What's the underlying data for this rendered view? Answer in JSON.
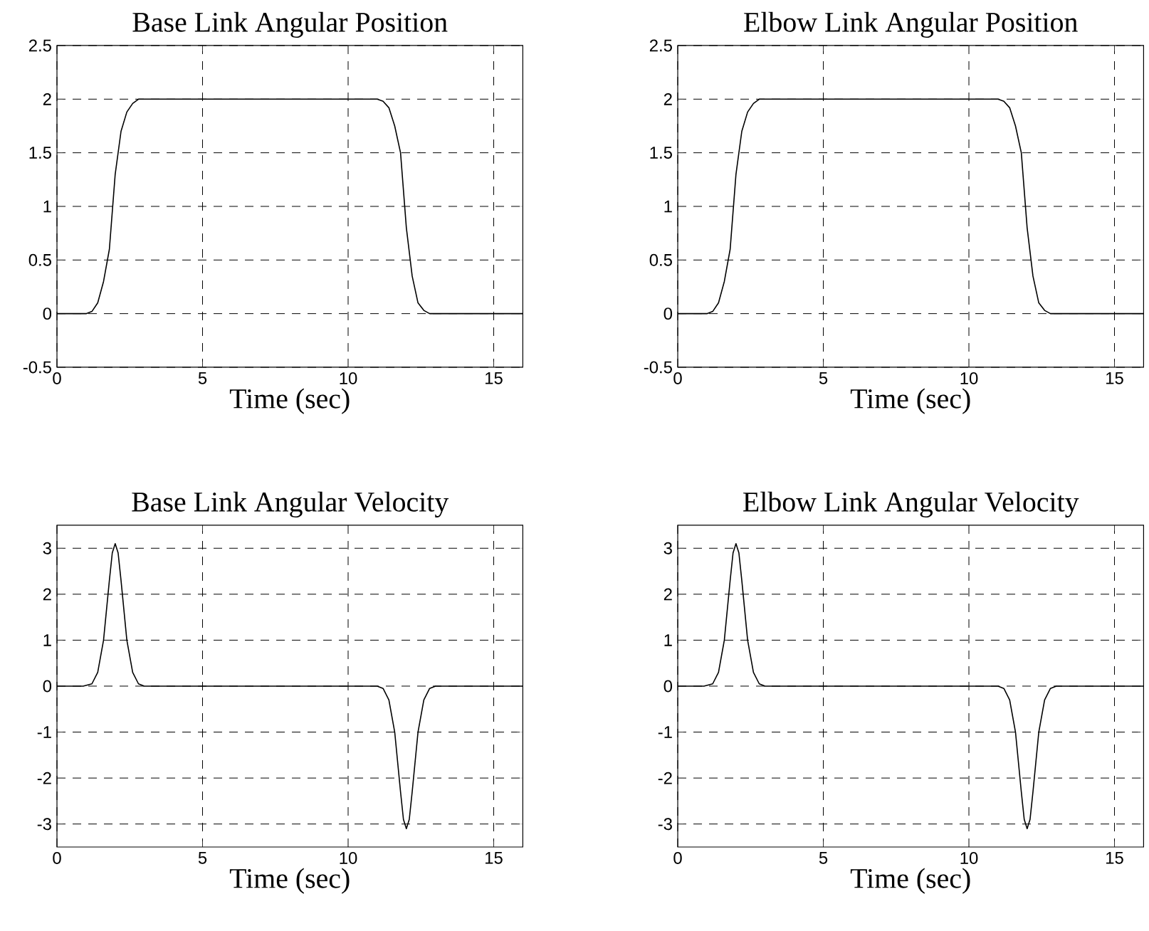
{
  "chart_data": [
    {
      "type": "line",
      "title": "Base Link Angular Position",
      "xlabel": "Time (sec)",
      "color": "#000000",
      "grid": true,
      "line_style": "solid",
      "xlim": [
        0,
        16
      ],
      "ylim": [
        -0.5,
        2.5
      ],
      "xticks": [
        0,
        5,
        10,
        15
      ],
      "yticks": [
        -0.5,
        0,
        0.5,
        1,
        1.5,
        2,
        2.5
      ],
      "x": [
        0,
        1,
        1.2,
        1.4,
        1.6,
        1.8,
        2.0,
        2.2,
        2.4,
        2.6,
        2.8,
        3,
        11,
        11.2,
        11.4,
        11.6,
        11.8,
        12,
        12.2,
        12.4,
        12.6,
        12.8,
        13,
        16
      ],
      "values": [
        0,
        0,
        0.02,
        0.1,
        0.3,
        0.6,
        1.3,
        1.7,
        1.88,
        1.96,
        2,
        2,
        2,
        1.98,
        1.92,
        1.75,
        1.5,
        0.8,
        0.35,
        0.1,
        0.03,
        0,
        0,
        0
      ]
    },
    {
      "type": "line",
      "title": "Elbow Link Angular Position",
      "xlabel": "Time (sec)",
      "color": "#000000",
      "grid": true,
      "line_style": "solid",
      "xlim": [
        0,
        16
      ],
      "ylim": [
        -0.5,
        2.5
      ],
      "xticks": [
        0,
        5,
        10,
        15
      ],
      "yticks": [
        -0.5,
        0,
        0.5,
        1,
        1.5,
        2,
        2.5
      ],
      "x": [
        0,
        1,
        1.2,
        1.4,
        1.6,
        1.8,
        2.0,
        2.2,
        2.4,
        2.6,
        2.8,
        3,
        11,
        11.2,
        11.4,
        11.6,
        11.8,
        12,
        12.2,
        12.4,
        12.6,
        12.8,
        13,
        16
      ],
      "values": [
        0,
        0,
        0.02,
        0.1,
        0.3,
        0.6,
        1.3,
        1.7,
        1.88,
        1.96,
        2,
        2,
        2,
        1.98,
        1.92,
        1.75,
        1.5,
        0.8,
        0.35,
        0.1,
        0.03,
        0,
        0,
        0
      ]
    },
    {
      "type": "line",
      "title": "Base Link Angular Velocity",
      "xlabel": "Time (sec)",
      "color": "#000000",
      "grid": true,
      "line_style": "solid",
      "xlim": [
        0,
        16
      ],
      "ylim": [
        -3.5,
        3.5
      ],
      "xticks": [
        0,
        5,
        10,
        15
      ],
      "yticks": [
        -3,
        -2,
        -1,
        0,
        1,
        2,
        3
      ],
      "x": [
        0,
        0.9,
        1.2,
        1.4,
        1.6,
        1.8,
        1.9,
        2.0,
        2.1,
        2.2,
        2.4,
        2.6,
        2.8,
        3,
        11,
        11.2,
        11.4,
        11.6,
        11.8,
        11.9,
        12,
        12.1,
        12.2,
        12.4,
        12.6,
        12.8,
        13,
        16
      ],
      "values": [
        0,
        0,
        0.05,
        0.3,
        1,
        2.3,
        2.9,
        3.1,
        2.9,
        2.3,
        1,
        0.3,
        0.05,
        0,
        0,
        -0.05,
        -0.3,
        -1,
        -2.3,
        -2.9,
        -3.1,
        -2.9,
        -2.3,
        -1,
        -0.3,
        -0.05,
        0,
        0
      ]
    },
    {
      "type": "line",
      "title": "Elbow Link Angular Velocity",
      "xlabel": "Time (sec)",
      "color": "#000000",
      "grid": true,
      "line_style": "solid",
      "xlim": [
        0,
        16
      ],
      "ylim": [
        -3.5,
        3.5
      ],
      "xticks": [
        0,
        5,
        10,
        15
      ],
      "yticks": [
        -3,
        -2,
        -1,
        0,
        1,
        2,
        3
      ],
      "x": [
        0,
        0.9,
        1.2,
        1.4,
        1.6,
        1.8,
        1.9,
        2.0,
        2.1,
        2.2,
        2.4,
        2.6,
        2.8,
        3,
        11,
        11.2,
        11.4,
        11.6,
        11.8,
        11.9,
        12,
        12.1,
        12.2,
        12.4,
        12.6,
        12.8,
        13,
        16
      ],
      "values": [
        0,
        0,
        0.05,
        0.3,
        1,
        2.3,
        2.9,
        3.1,
        2.9,
        2.3,
        1,
        0.3,
        0.05,
        0,
        0,
        -0.05,
        -0.3,
        -1,
        -2.3,
        -2.9,
        -3.1,
        -2.9,
        -2.3,
        -1,
        -0.3,
        -0.05,
        0,
        0
      ]
    }
  ]
}
